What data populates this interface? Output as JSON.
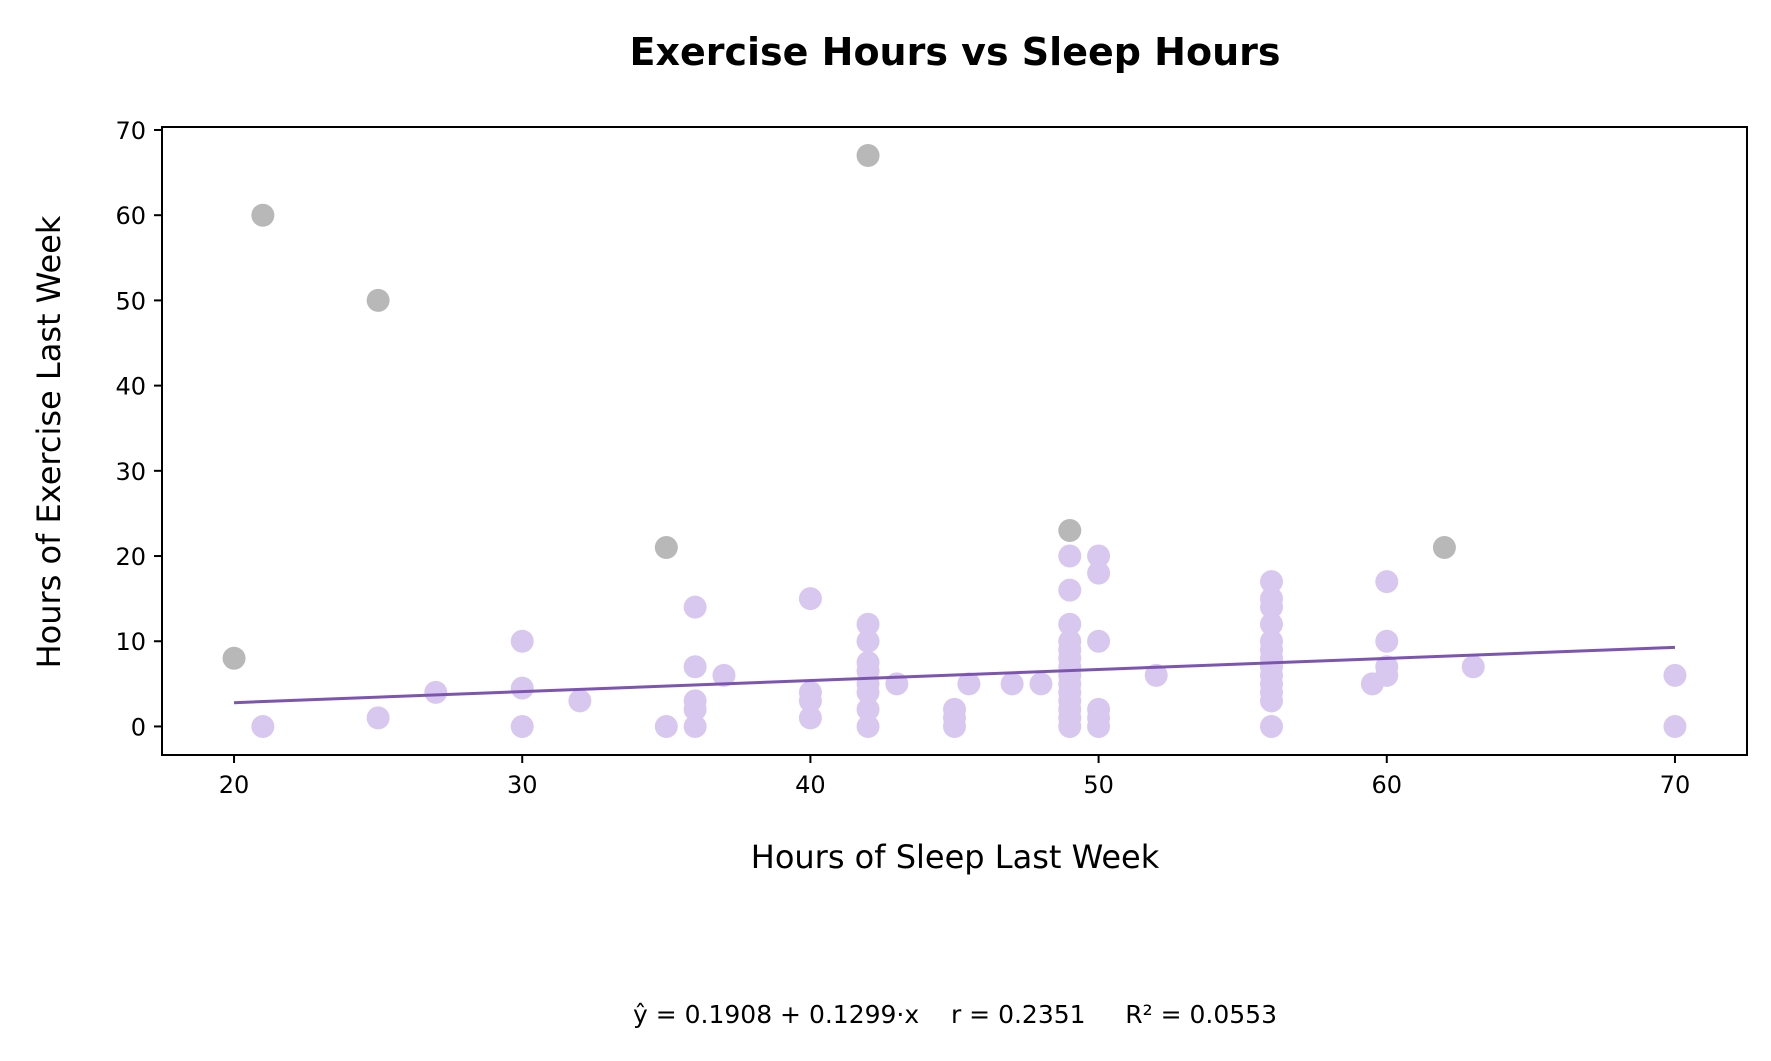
{
  "chart_data": {
    "type": "scatter",
    "title": "Exercise Hours vs Sleep Hours",
    "xlabel": "Hours of Sleep Last Week",
    "ylabel": "Hours of Exercise Last Week",
    "xlim": [
      17.5,
      72.5
    ],
    "ylim": [
      -3.35,
      70.35
    ],
    "xticks": [
      20,
      30,
      40,
      50,
      60,
      70
    ],
    "yticks": [
      0,
      10,
      20,
      30,
      40,
      50,
      60,
      70
    ],
    "grid": false,
    "legend": "none",
    "colors": {
      "points": "#d8c8f0",
      "outliers": "#b8b8b8",
      "fit_line": "#7d55b0",
      "axes": "#000000"
    },
    "series": [
      {
        "role": "points",
        "points": [
          [
            21,
            0
          ],
          [
            25,
            1
          ],
          [
            27,
            4
          ],
          [
            30,
            10
          ],
          [
            30,
            4.5
          ],
          [
            30,
            0
          ],
          [
            32,
            3
          ],
          [
            35,
            0
          ],
          [
            36,
            14
          ],
          [
            36,
            7
          ],
          [
            36,
            3
          ],
          [
            36,
            2
          ],
          [
            36,
            0
          ],
          [
            37,
            6
          ],
          [
            40,
            15
          ],
          [
            40,
            4
          ],
          [
            40,
            3
          ],
          [
            40,
            1
          ],
          [
            42,
            12
          ],
          [
            42,
            10
          ],
          [
            42,
            7.5
          ],
          [
            42,
            6.5
          ],
          [
            42,
            5
          ],
          [
            42,
            4
          ],
          [
            42,
            2
          ],
          [
            42,
            0
          ],
          [
            43,
            5
          ],
          [
            45,
            2
          ],
          [
            45,
            1
          ],
          [
            45,
            0
          ],
          [
            45.5,
            5
          ],
          [
            47,
            5
          ],
          [
            48,
            5
          ],
          [
            49,
            20
          ],
          [
            49,
            16
          ],
          [
            49,
            12
          ],
          [
            49,
            10
          ],
          [
            49,
            9
          ],
          [
            49,
            8
          ],
          [
            49,
            7
          ],
          [
            49,
            6
          ],
          [
            49,
            5
          ],
          [
            49,
            4
          ],
          [
            49,
            3
          ],
          [
            49,
            2
          ],
          [
            49,
            1
          ],
          [
            49,
            0
          ],
          [
            50,
            20
          ],
          [
            50,
            18
          ],
          [
            50,
            10
          ],
          [
            50,
            2
          ],
          [
            50,
            1
          ],
          [
            50,
            0
          ],
          [
            52,
            6
          ],
          [
            56,
            17
          ],
          [
            56,
            15
          ],
          [
            56,
            14
          ],
          [
            56,
            12
          ],
          [
            56,
            10
          ],
          [
            56,
            9
          ],
          [
            56,
            8
          ],
          [
            56,
            7
          ],
          [
            56,
            6
          ],
          [
            56,
            5
          ],
          [
            56,
            4
          ],
          [
            56,
            3
          ],
          [
            56,
            0
          ],
          [
            59.5,
            5
          ],
          [
            60,
            17
          ],
          [
            60,
            10
          ],
          [
            60,
            7
          ],
          [
            60,
            6
          ],
          [
            63,
            7
          ],
          [
            70,
            6
          ],
          [
            70,
            0
          ]
        ]
      },
      {
        "role": "outliers",
        "points": [
          [
            20,
            8
          ],
          [
            21,
            60
          ],
          [
            25,
            50
          ],
          [
            35,
            21
          ],
          [
            42,
            67
          ],
          [
            49,
            23
          ],
          [
            62,
            21
          ]
        ]
      }
    ],
    "fit_line": {
      "intercept": 0.1908,
      "slope": 0.1299,
      "x_range": [
        20,
        70
      ]
    },
    "annotation": "ŷ = 0.1908 + 0.1299·x    r = 0.2351     R² = 0.0553"
  }
}
